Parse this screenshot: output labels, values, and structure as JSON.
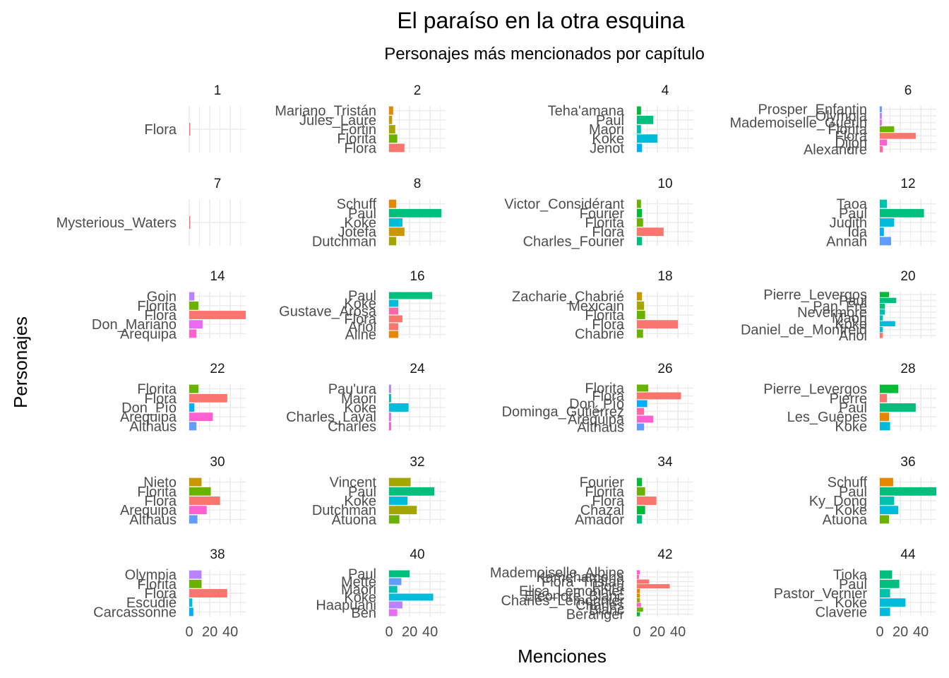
{
  "chart_data": {
    "type": "bar",
    "orientation": "horizontal",
    "layout": "faceted",
    "title": "El paraíso en la otra esquina",
    "subtitle": "Personajes más mencionados por capítulo",
    "xlabel": "Menciones",
    "ylabel": "Personajes",
    "xlim": [
      0,
      55
    ],
    "x_ticks": [
      0,
      20,
      40
    ],
    "grid": true,
    "legend": "none",
    "color_palette": [
      "#F8766D",
      "#E58700",
      "#C99800",
      "#A3A500",
      "#6BB100",
      "#00BA38",
      "#00BF7D",
      "#00C0AF",
      "#00BCD8",
      "#00B0F6",
      "#619CFF",
      "#B983FF",
      "#E76BF3",
      "#FD61D1",
      "#FF67A4"
    ],
    "panels": [
      {
        "chapter": "1",
        "items": [
          {
            "name": "Flora",
            "value": 1
          }
        ]
      },
      {
        "chapter": "2",
        "items": [
          {
            "name": "Mariano_Tristán",
            "value": 4
          },
          {
            "name": "Jules_Laure",
            "value": 3
          },
          {
            "name": "Fortin",
            "value": 6
          },
          {
            "name": "Florita",
            "value": 8
          },
          {
            "name": "Flora",
            "value": 15
          }
        ]
      },
      {
        "chapter": "4",
        "items": [
          {
            "name": "Teha'amana",
            "value": 4
          },
          {
            "name": "Paul",
            "value": 16
          },
          {
            "name": "Maori",
            "value": 4
          },
          {
            "name": "Koke",
            "value": 20
          },
          {
            "name": "Jenot",
            "value": 5
          }
        ]
      },
      {
        "chapter": "6",
        "items": [
          {
            "name": "Prosper_Enfantin",
            "value": 2
          },
          {
            "name": "Olympia",
            "value": 2
          },
          {
            "name": "Mademoiselle_Guérin",
            "value": 2
          },
          {
            "name": "Florita",
            "value": 14
          },
          {
            "name": "Flora",
            "value": 35
          },
          {
            "name": "Dijon",
            "value": 7
          },
          {
            "name": "Alexandre",
            "value": 3
          }
        ]
      },
      {
        "chapter": "7",
        "items": [
          {
            "name": "Mysterious_Waters",
            "value": 1
          }
        ]
      },
      {
        "chapter": "8",
        "items": [
          {
            "name": "Schuff",
            "value": 7
          },
          {
            "name": "Paul",
            "value": 51
          },
          {
            "name": "Koke",
            "value": 13
          },
          {
            "name": "Jotefa",
            "value": 15
          },
          {
            "name": "Dutchman",
            "value": 7
          }
        ]
      },
      {
        "chapter": "10",
        "items": [
          {
            "name": "Victor_Considérant",
            "value": 4
          },
          {
            "name": "Fourier",
            "value": 5
          },
          {
            "name": "Florita",
            "value": 6
          },
          {
            "name": "Flora",
            "value": 26
          },
          {
            "name": "Charles_Fourier",
            "value": 5
          }
        ]
      },
      {
        "chapter": "12",
        "items": [
          {
            "name": "Taoa",
            "value": 7
          },
          {
            "name": "Paul",
            "value": 43
          },
          {
            "name": "Judith",
            "value": 14
          },
          {
            "name": "Ida",
            "value": 4
          },
          {
            "name": "Annah",
            "value": 11
          }
        ]
      },
      {
        "chapter": "14",
        "items": [
          {
            "name": "Goin",
            "value": 5
          },
          {
            "name": "Florita",
            "value": 9
          },
          {
            "name": "Flora",
            "value": 55
          },
          {
            "name": "Don_Mariano",
            "value": 13
          },
          {
            "name": "Arequipa",
            "value": 7
          }
        ]
      },
      {
        "chapter": "16",
        "items": [
          {
            "name": "Paul",
            "value": 42
          },
          {
            "name": "Koke",
            "value": 9
          },
          {
            "name": "Gustave_Arosa",
            "value": 9
          },
          {
            "name": "Flora",
            "value": 13
          },
          {
            "name": "Ariol",
            "value": 9
          },
          {
            "name": "Aline",
            "value": 9
          }
        ]
      },
      {
        "chapter": "18",
        "items": [
          {
            "name": "Zacharie_Chabrié",
            "value": 5
          },
          {
            "name": "Mexicain",
            "value": 7
          },
          {
            "name": "Florita",
            "value": 8
          },
          {
            "name": "Flora",
            "value": 40
          },
          {
            "name": "Chabrié",
            "value": 6
          }
        ]
      },
      {
        "chapter": "20",
        "items": [
          {
            "name": "Pierre_Levergos",
            "value": 9
          },
          {
            "name": "Paul",
            "value": 16
          },
          {
            "name": "Pan_Fré",
            "value": 5
          },
          {
            "name": "Nevermore",
            "value": 5
          },
          {
            "name": "Maori",
            "value": 3
          },
          {
            "name": "Koke",
            "value": 15
          },
          {
            "name": "Daniel_de_Monfreid",
            "value": 3
          },
          {
            "name": "Ariol",
            "value": 3
          }
        ]
      },
      {
        "chapter": "22",
        "items": [
          {
            "name": "Florita",
            "value": 9
          },
          {
            "name": "Flora",
            "value": 37
          },
          {
            "name": "Don_Pío",
            "value": 5
          },
          {
            "name": "Arequipa",
            "value": 23
          },
          {
            "name": "Althaus",
            "value": 7
          }
        ]
      },
      {
        "chapter": "24",
        "items": [
          {
            "name": "Pau'ura",
            "value": 2
          },
          {
            "name": "Maori",
            "value": 2
          },
          {
            "name": "Koke",
            "value": 19
          },
          {
            "name": "Charles_Laval",
            "value": 2
          },
          {
            "name": "Charles",
            "value": 2
          }
        ]
      },
      {
        "chapter": "26",
        "items": [
          {
            "name": "Florita",
            "value": 11
          },
          {
            "name": "Flora",
            "value": 43
          },
          {
            "name": "Don_Pío",
            "value": 10
          },
          {
            "name": "Dominga_Gutiérrez",
            "value": 7
          },
          {
            "name": "Arequipa",
            "value": 16
          },
          {
            "name": "Althaus",
            "value": 7
          }
        ]
      },
      {
        "chapter": "28",
        "items": [
          {
            "name": "Pierre_Levergos",
            "value": 18
          },
          {
            "name": "Pierre",
            "value": 7
          },
          {
            "name": "Paul",
            "value": 35
          },
          {
            "name": "Les_Guêpes",
            "value": 9
          },
          {
            "name": "Koke",
            "value": 10
          }
        ]
      },
      {
        "chapter": "30",
        "items": [
          {
            "name": "Nieto",
            "value": 12
          },
          {
            "name": "Florita",
            "value": 21
          },
          {
            "name": "Flora",
            "value": 30
          },
          {
            "name": "Arequipa",
            "value": 17
          },
          {
            "name": "Althaus",
            "value": 8
          }
        ]
      },
      {
        "chapter": "32",
        "items": [
          {
            "name": "Vincent",
            "value": 21
          },
          {
            "name": "Paul",
            "value": 44
          },
          {
            "name": "Koke",
            "value": 18
          },
          {
            "name": "Dutchman",
            "value": 27
          },
          {
            "name": "Atuona",
            "value": 10
          }
        ]
      },
      {
        "chapter": "34",
        "items": [
          {
            "name": "Fourier",
            "value": 5
          },
          {
            "name": "Florita",
            "value": 8
          },
          {
            "name": "Flora",
            "value": 19
          },
          {
            "name": "Chazal",
            "value": 8
          },
          {
            "name": "Amador",
            "value": 5
          }
        ]
      },
      {
        "chapter": "36",
        "items": [
          {
            "name": "Schuff",
            "value": 13
          },
          {
            "name": "Paul",
            "value": 55
          },
          {
            "name": "Ky_Dong",
            "value": 14
          },
          {
            "name": "Koke",
            "value": 18
          },
          {
            "name": "Atuona",
            "value": 9
          }
        ]
      },
      {
        "chapter": "38",
        "items": [
          {
            "name": "Olympia",
            "value": 12
          },
          {
            "name": "Florita",
            "value": 12
          },
          {
            "name": "Flora",
            "value": 37
          },
          {
            "name": "Escudié",
            "value": 3
          },
          {
            "name": "Carcassonne",
            "value": 4
          }
        ]
      },
      {
        "chapter": "40",
        "items": [
          {
            "name": "Paul",
            "value": 20
          },
          {
            "name": "Mette",
            "value": 12
          },
          {
            "name": "Maori",
            "value": 8
          },
          {
            "name": "Koke",
            "value": 43
          },
          {
            "name": "Haapuani",
            "value": 13
          },
          {
            "name": "Ben",
            "value": 8
          }
        ]
      },
      {
        "chapter": "42",
        "items": [
          {
            "name": "Mademoiselle_Albine",
            "value": 3
          },
          {
            "name": "Kamehameha",
            "value": 2
          },
          {
            "name": "Flora_Tristán",
            "value": 12
          },
          {
            "name": "Flora",
            "value": 32
          },
          {
            "name": "Elisa_Lemonnier",
            "value": 3
          },
          {
            "name": "Eléonore_Blanc",
            "value": 3
          },
          {
            "name": "Charles_Lemonnier",
            "value": 3
          },
          {
            "name": "Charles",
            "value": 4
          },
          {
            "name": "Blanc",
            "value": 6
          },
          {
            "name": "Béranger",
            "value": 3
          }
        ]
      },
      {
        "chapter": "44",
        "items": [
          {
            "name": "Tioka",
            "value": 12
          },
          {
            "name": "Paul",
            "value": 19
          },
          {
            "name": "Pastor_Vernier",
            "value": 10
          },
          {
            "name": "Koke",
            "value": 25
          },
          {
            "name": "Claverie",
            "value": 10
          }
        ]
      }
    ]
  }
}
